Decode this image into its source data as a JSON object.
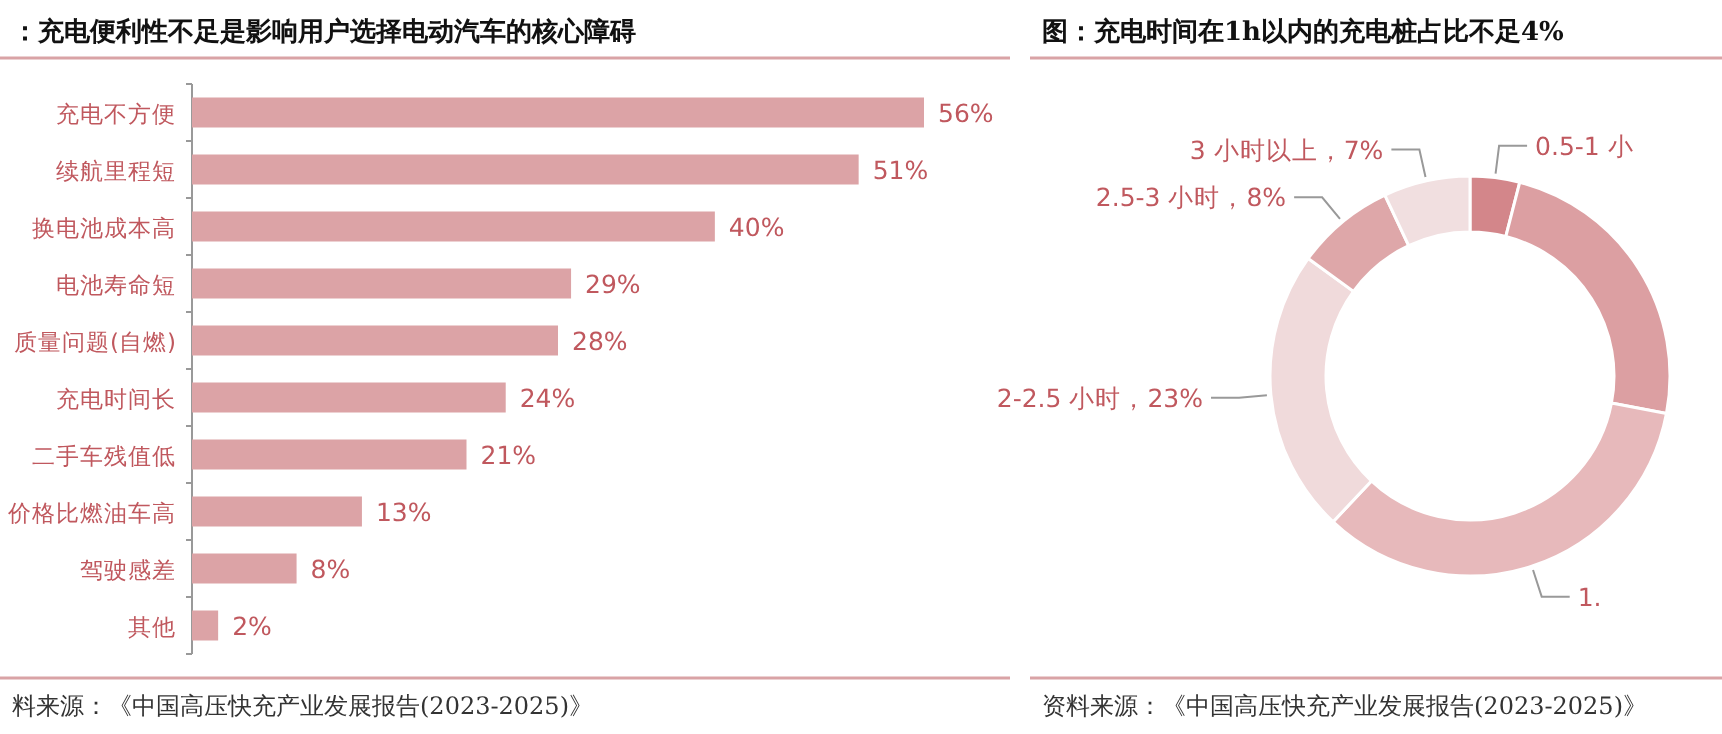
{
  "chart_data": [
    {
      "type": "bar",
      "orientation": "horizontal",
      "title": "：充电便利性不足是影响用户选择电动汽车的核心障碍",
      "categories": [
        "充电不方便",
        "续航里程短",
        "换电池成本高",
        "电池寿命短",
        "质量问题(自燃)",
        "充电时间长",
        "二手车残值低",
        "价格比燃油车高",
        "驾驶感差",
        "其他"
      ],
      "values": [
        56,
        51,
        40,
        29,
        28,
        24,
        21,
        13,
        8,
        2
      ],
      "value_labels": [
        "56%",
        "51%",
        "40%",
        "29%",
        "28%",
        "24%",
        "21%",
        "13%",
        "8%",
        "2%"
      ],
      "color": "#dca3a6",
      "tick_labels": "y",
      "annotations": [
        "料来源：《中国高压快充产业发展报告(2023-2025)》"
      ]
    },
    {
      "type": "donut",
      "title": "图：充电时间在1h以内的充电桩占比不足4%",
      "categories": [
        "0.5-1 小",
        null,
        "1.",
        "2-2.5 小时",
        "2.5-3 小时",
        "3 小时以上"
      ],
      "values": [
        4,
        24,
        34,
        23,
        8,
        7
      ],
      "value_labels": [
        null,
        null,
        null,
        "23%",
        "8%",
        "7%"
      ],
      "colors": [
        "#d3868a",
        "#dc9fa2",
        "#e7b9bb",
        "#f0dadb",
        "#dea7a9",
        "#f1dfe0"
      ],
      "annotations": [
        "资料来源：《中国高压快充产业发展报告(2023-2025)》"
      ]
    }
  ]
}
